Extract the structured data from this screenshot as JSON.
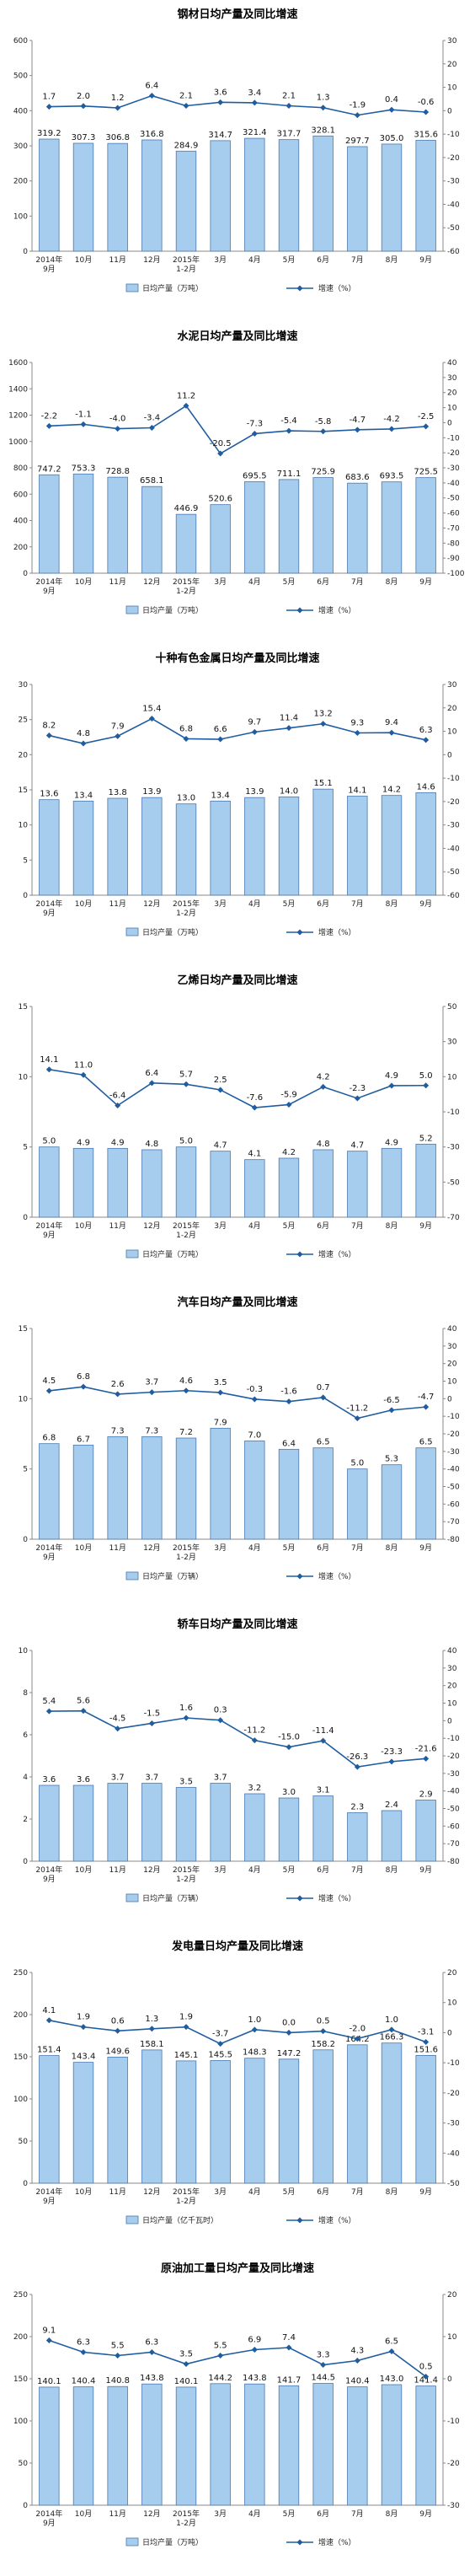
{
  "chart_data": [
    {
      "type": "bar",
      "title": "钢材日均产量及同比增速",
      "categories": [
        "2014年\n9月",
        "10月",
        "11月",
        "12月",
        "2015年\n1-2月",
        "3月",
        "4月",
        "5月",
        "6月",
        "7月",
        "8月",
        "9月"
      ],
      "series": [
        {
          "name": "日均产量（万吨）",
          "type": "bar",
          "axis": "left",
          "values": [
            319.2,
            307.3,
            306.8,
            316.8,
            284.9,
            314.7,
            321.4,
            317.7,
            328.1,
            297.7,
            305.0,
            315.6
          ],
          "labels": [
            "319.2",
            "307.3",
            "306.8",
            "316.8",
            "284.9",
            "314.7",
            "321.4",
            "317.7",
            "328.1",
            "297.7",
            "305.0",
            "315.6"
          ]
        },
        {
          "name": "增速（%）",
          "type": "line",
          "axis": "right",
          "values": [
            1.7,
            2.0,
            1.2,
            6.4,
            2.1,
            3.6,
            3.4,
            2.1,
            1.3,
            -1.9,
            0.4,
            -0.6
          ],
          "labels": [
            "1.7",
            "2.0",
            "1.2",
            "6.4",
            "2.1",
            "3.6",
            "3.4",
            "2.1",
            "1.3",
            "-1.9",
            "0.4",
            "-0.6"
          ]
        }
      ],
      "ylim_left": [
        0,
        600
      ],
      "yticks_left": [
        0,
        100,
        200,
        300,
        400,
        500,
        600
      ],
      "ylim_right": [
        -60,
        30
      ],
      "yticks_right": [
        -60,
        -50,
        -40,
        -30,
        -20,
        -10,
        0,
        10,
        20,
        30
      ],
      "legend_position": "bottom"
    },
    {
      "type": "bar",
      "title": "水泥日均产量及同比增速",
      "categories": [
        "2014年\n9月",
        "10月",
        "11月",
        "12月",
        "2015年\n1-2月",
        "3月",
        "4月",
        "5月",
        "6月",
        "7月",
        "8月",
        "9月"
      ],
      "series": [
        {
          "name": "日均产量（万吨）",
          "type": "bar",
          "axis": "left",
          "values": [
            747.2,
            753.3,
            728.8,
            658.1,
            446.9,
            520.6,
            695.5,
            711.1,
            725.9,
            683.6,
            693.5,
            725.5
          ],
          "labels": [
            "747.2",
            "753.3",
            "728.8",
            "658.1",
            "446.9",
            "520.6",
            "695.5",
            "711.1",
            "725.9",
            "683.6",
            "693.5",
            "725.5"
          ]
        },
        {
          "name": "增速（%）",
          "type": "line",
          "axis": "right",
          "values": [
            -2.2,
            -1.1,
            -4.0,
            -3.4,
            11.2,
            -20.5,
            -7.3,
            -5.4,
            -5.8,
            -4.7,
            -4.2,
            -2.5
          ],
          "labels": [
            "-2.2",
            "-1.1",
            "-4.0",
            "-3.4",
            "11.2",
            "-20.5",
            "-7.3",
            "-5.4",
            "-5.8",
            "-4.7",
            "-4.2",
            "-2.5"
          ]
        }
      ],
      "ylim_left": [
        0,
        1600
      ],
      "yticks_left": [
        0,
        200,
        400,
        600,
        800,
        1000,
        1200,
        1400,
        1600
      ],
      "ylim_right": [
        -100,
        40
      ],
      "yticks_right": [
        -100,
        -90,
        -80,
        -70,
        -60,
        -50,
        -40,
        -30,
        -20,
        -10,
        0,
        10,
        20,
        30,
        40
      ],
      "legend_position": "bottom"
    },
    {
      "type": "bar",
      "title": "十种有色金属日均产量及同比增速",
      "categories": [
        "2014年\n9月",
        "10月",
        "11月",
        "12月",
        "2015年\n1-2月",
        "3月",
        "4月",
        "5月",
        "6月",
        "7月",
        "8月",
        "9月"
      ],
      "series": [
        {
          "name": "日均产量（万吨）",
          "type": "bar",
          "axis": "left",
          "values": [
            13.6,
            13.4,
            13.8,
            13.9,
            13.0,
            13.4,
            13.9,
            14.0,
            15.1,
            14.1,
            14.2,
            14.6
          ],
          "labels": [
            "13.6",
            "13.4",
            "13.8",
            "13.9",
            "13.0",
            "13.4",
            "13.9",
            "14.0",
            "15.1",
            "14.1",
            "14.2",
            "14.6"
          ]
        },
        {
          "name": "增速（%）",
          "type": "line",
          "axis": "right",
          "values": [
            8.2,
            4.8,
            7.9,
            15.4,
            6.8,
            6.6,
            9.7,
            11.4,
            13.2,
            9.3,
            9.4,
            6.3
          ],
          "labels": [
            "8.2",
            "4.8",
            "7.9",
            "15.4",
            "6.8",
            "6.6",
            "9.7",
            "11.4",
            "13.2",
            "9.3",
            "9.4",
            "6.3"
          ]
        }
      ],
      "ylim_left": [
        0,
        30
      ],
      "yticks_left": [
        0,
        5,
        10,
        15,
        20,
        25,
        30
      ],
      "ylim_right": [
        -60,
        30
      ],
      "yticks_right": [
        -60,
        -50,
        -40,
        -30,
        -20,
        -10,
        0,
        10,
        20,
        30
      ],
      "legend_position": "bottom"
    },
    {
      "type": "bar",
      "title": "乙烯日均产量及同比增速",
      "categories": [
        "2014年\n9月",
        "10月",
        "11月",
        "12月",
        "2015年\n1-2月",
        "3月",
        "4月",
        "5月",
        "6月",
        "7月",
        "8月",
        "9月"
      ],
      "series": [
        {
          "name": "日均产量（万吨）",
          "type": "bar",
          "axis": "left",
          "values": [
            5.0,
            4.9,
            4.9,
            4.8,
            5.0,
            4.7,
            4.1,
            4.2,
            4.8,
            4.7,
            4.9,
            5.2
          ],
          "labels": [
            "5.0",
            "4.9",
            "4.9",
            "4.8",
            "5.0",
            "4.7",
            "4.1",
            "4.2",
            "4.8",
            "4.7",
            "4.9",
            "5.2"
          ]
        },
        {
          "name": "增速（%）",
          "type": "line",
          "axis": "right",
          "values": [
            14.1,
            11.0,
            -6.4,
            6.4,
            5.7,
            2.5,
            -7.6,
            -5.9,
            4.2,
            -2.3,
            4.9,
            5.0
          ],
          "labels": [
            "14.1",
            "11.0",
            "-6.4",
            "6.4",
            "5.7",
            "2.5",
            "-7.6",
            "-5.9",
            "4.2",
            "-2.3",
            "4.9",
            "5.0"
          ]
        }
      ],
      "ylim_left": [
        0,
        15
      ],
      "yticks_left": [
        0,
        5,
        10,
        15
      ],
      "ylim_right": [
        -70,
        50
      ],
      "yticks_right": [
        -70,
        -50,
        -30,
        -10,
        10,
        30,
        50
      ],
      "legend_position": "bottom"
    },
    {
      "type": "bar",
      "title": "汽车日均产量及同比增速",
      "categories": [
        "2014年\n9月",
        "10月",
        "11月",
        "12月",
        "2015年\n1-2月",
        "3月",
        "4月",
        "5月",
        "6月",
        "7月",
        "8月",
        "9月"
      ],
      "series": [
        {
          "name": "日均产量（万辆）",
          "type": "bar",
          "axis": "left",
          "values": [
            6.8,
            6.7,
            7.3,
            7.3,
            7.2,
            7.9,
            7.0,
            6.4,
            6.5,
            5.0,
            5.3,
            6.5
          ],
          "labels": [
            "6.8",
            "6.7",
            "7.3",
            "7.3",
            "7.2",
            "7.9",
            "7.0",
            "6.4",
            "6.5",
            "5.0",
            "5.3",
            "6.5"
          ]
        },
        {
          "name": "增速（%）",
          "type": "line",
          "axis": "right",
          "values": [
            4.5,
            6.8,
            2.6,
            3.7,
            4.6,
            3.5,
            -0.3,
            -1.6,
            0.7,
            -11.2,
            -6.5,
            -4.7
          ],
          "labels": [
            "4.5",
            "6.8",
            "2.6",
            "3.7",
            "4.6",
            "3.5",
            "-0.3",
            "-1.6",
            "0.7",
            "-11.2",
            "-6.5",
            "-4.7"
          ]
        }
      ],
      "ylim_left": [
        0,
        15
      ],
      "yticks_left": [
        0,
        5,
        10,
        15
      ],
      "ylim_right": [
        -80,
        40
      ],
      "yticks_right": [
        -80,
        -70,
        -60,
        -50,
        -40,
        -30,
        -20,
        -10,
        0,
        10,
        20,
        30,
        40
      ],
      "legend_position": "bottom"
    },
    {
      "type": "bar",
      "title": "轿车日均产量及同比增速",
      "categories": [
        "2014年\n9月",
        "10月",
        "11月",
        "12月",
        "2015年\n1-2月",
        "3月",
        "4月",
        "5月",
        "6月",
        "7月",
        "8月",
        "9月"
      ],
      "series": [
        {
          "name": "日均产量（万辆）",
          "type": "bar",
          "axis": "left",
          "values": [
            3.6,
            3.6,
            3.7,
            3.7,
            3.5,
            3.7,
            3.2,
            3.0,
            3.1,
            2.3,
            2.4,
            2.9
          ],
          "labels": [
            "3.6",
            "3.6",
            "3.7",
            "3.7",
            "3.5",
            "3.7",
            "3.2",
            "3.0",
            "3.1",
            "2.3",
            "2.4",
            "2.9"
          ]
        },
        {
          "name": "增速（%）",
          "type": "line",
          "axis": "right",
          "values": [
            5.4,
            5.6,
            -4.5,
            -1.5,
            1.6,
            0.3,
            -11.2,
            -15.0,
            -11.4,
            -26.3,
            -23.3,
            -21.6
          ],
          "labels": [
            "5.4",
            "5.6",
            "-4.5",
            "-1.5",
            "1.6",
            "0.3",
            "-11.2",
            "-15.0",
            "-11.4",
            "-26.3",
            "-23.3",
            "-21.6"
          ]
        }
      ],
      "ylim_left": [
        0,
        10
      ],
      "yticks_left": [
        0,
        2,
        4,
        6,
        8,
        10
      ],
      "ylim_right": [
        -80,
        40
      ],
      "yticks_right": [
        -80,
        -70,
        -60,
        -50,
        -40,
        -30,
        -20,
        -10,
        0,
        10,
        20,
        30,
        40
      ],
      "legend_position": "bottom"
    },
    {
      "type": "bar",
      "title": "发电量日均产量及同比增速",
      "categories": [
        "2014年\n9月",
        "10月",
        "11月",
        "12月",
        "2015年\n1-2月",
        "3月",
        "4月",
        "5月",
        "6月",
        "7月",
        "8月",
        "9月"
      ],
      "series": [
        {
          "name": "日均产量（亿千瓦时）",
          "type": "bar",
          "axis": "left",
          "values": [
            151.4,
            143.4,
            149.6,
            158.1,
            145.1,
            145.5,
            148.3,
            147.2,
            158.2,
            164.2,
            166.3,
            151.6
          ],
          "labels": [
            "151.4",
            "143.4",
            "149.6",
            "158.1",
            "145.1",
            "145.5",
            "148.3",
            "147.2",
            "158.2",
            "164.2",
            "166.3",
            "151.6"
          ]
        },
        {
          "name": "增速（%）",
          "type": "line",
          "axis": "right",
          "values": [
            4.1,
            1.9,
            0.6,
            1.3,
            1.9,
            -3.7,
            1.0,
            0.0,
            0.5,
            -2.0,
            1.0,
            -3.1
          ],
          "labels": [
            "4.1",
            "1.9",
            "0.6",
            "1.3",
            "1.9",
            "-3.7",
            "1.0",
            "0.0",
            "0.5",
            "-2.0",
            "1.0",
            "-3.1"
          ]
        }
      ],
      "ylim_left": [
        0,
        250
      ],
      "yticks_left": [
        0,
        50,
        100,
        150,
        200,
        250
      ],
      "ylim_right": [
        -50,
        20
      ],
      "yticks_right": [
        -50,
        -40,
        -30,
        -20,
        -10,
        0,
        10,
        20
      ],
      "legend_position": "bottom"
    },
    {
      "type": "bar",
      "title": "原油加工量日均产量及同比增速",
      "categories": [
        "2014年\n9月",
        "10月",
        "11月",
        "12月",
        "2015年\n1-2月",
        "3月",
        "4月",
        "5月",
        "6月",
        "7月",
        "8月",
        "9月"
      ],
      "series": [
        {
          "name": "日均产量（万吨）",
          "type": "bar",
          "axis": "left",
          "values": [
            140.1,
            140.4,
            140.8,
            143.8,
            140.1,
            144.2,
            143.8,
            141.7,
            144.5,
            140.4,
            143.0,
            141.4
          ],
          "labels": [
            "140.1",
            "140.4",
            "140.8",
            "143.8",
            "140.1",
            "144.2",
            "143.8",
            "141.7",
            "144.5",
            "140.4",
            "143.0",
            "141.4"
          ]
        },
        {
          "name": "增速（%）",
          "type": "line",
          "axis": "right",
          "values": [
            9.1,
            6.3,
            5.5,
            6.3,
            3.5,
            5.5,
            6.9,
            7.4,
            3.3,
            4.3,
            6.5,
            0.5
          ],
          "labels": [
            "9.1",
            "6.3",
            "5.5",
            "6.3",
            "3.5",
            "5.5",
            "6.9",
            "7.4",
            "3.3",
            "4.3",
            "6.5",
            "0.5"
          ]
        }
      ],
      "ylim_left": [
        0,
        250
      ],
      "yticks_left": [
        0,
        50,
        100,
        150,
        200,
        250
      ],
      "ylim_right": [
        -30,
        20
      ],
      "yticks_right": [
        -30,
        -20,
        -10,
        0,
        10,
        20
      ],
      "legend_position": "bottom"
    }
  ],
  "colors": {
    "bar_fill": "#a6cdee",
    "bar_stroke": "#4a78ad",
    "line": "#1f5da0",
    "axis": "#888888",
    "text": "#111111"
  }
}
